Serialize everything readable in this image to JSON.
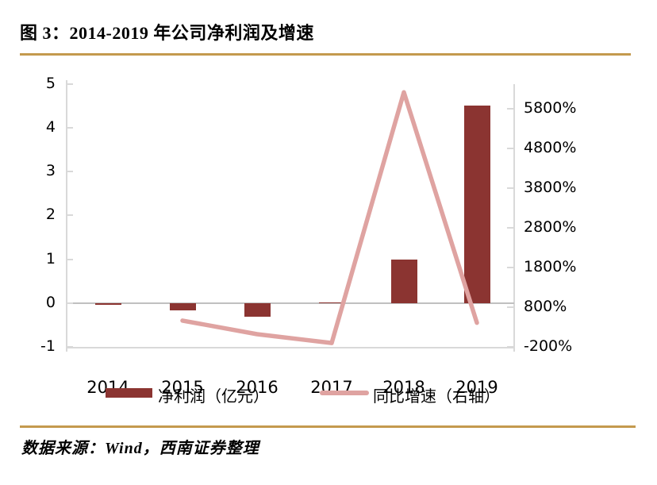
{
  "header": {
    "title": "图 3：2014-2019 年公司净利润及增速"
  },
  "footer": {
    "source": "数据来源：Wind，西南证券整理"
  },
  "colors": {
    "bar": "#8B3431",
    "line": "#DFA3A1",
    "rule": "#C49A4E",
    "axis": "#D9D9D9",
    "zero_line": "#C0C0C0",
    "text": "#000000"
  },
  "chart_data": {
    "type": "combo-bar-line",
    "title": "2014-2019 年公司净利润及增速",
    "categories": [
      "2014",
      "2015",
      "2016",
      "2017",
      "2018",
      "2019"
    ],
    "series": [
      {
        "name": "净利润（亿元）",
        "type": "bar",
        "axis": "left",
        "values": [
          -0.02,
          -0.17,
          -0.3,
          0.02,
          1.0,
          4.5
        ]
      },
      {
        "name": "同比增速（右轴）",
        "type": "line",
        "axis": "right",
        "unit": "%",
        "values": [
          null,
          400,
          90,
          -110,
          5600,
          350
        ]
      }
    ],
    "left_axis": {
      "ticks": [
        5,
        4,
        3,
        2,
        1,
        0,
        -1
      ],
      "min": -1,
      "max": 5
    },
    "right_axis": {
      "tick_labels": [
        "5800%",
        "4800%",
        "3800%",
        "2800%",
        "1800%",
        "800%",
        "-200%"
      ],
      "min_pct": -200,
      "max_pct": 5800
    },
    "grid": false,
    "legend_position": "bottom"
  }
}
